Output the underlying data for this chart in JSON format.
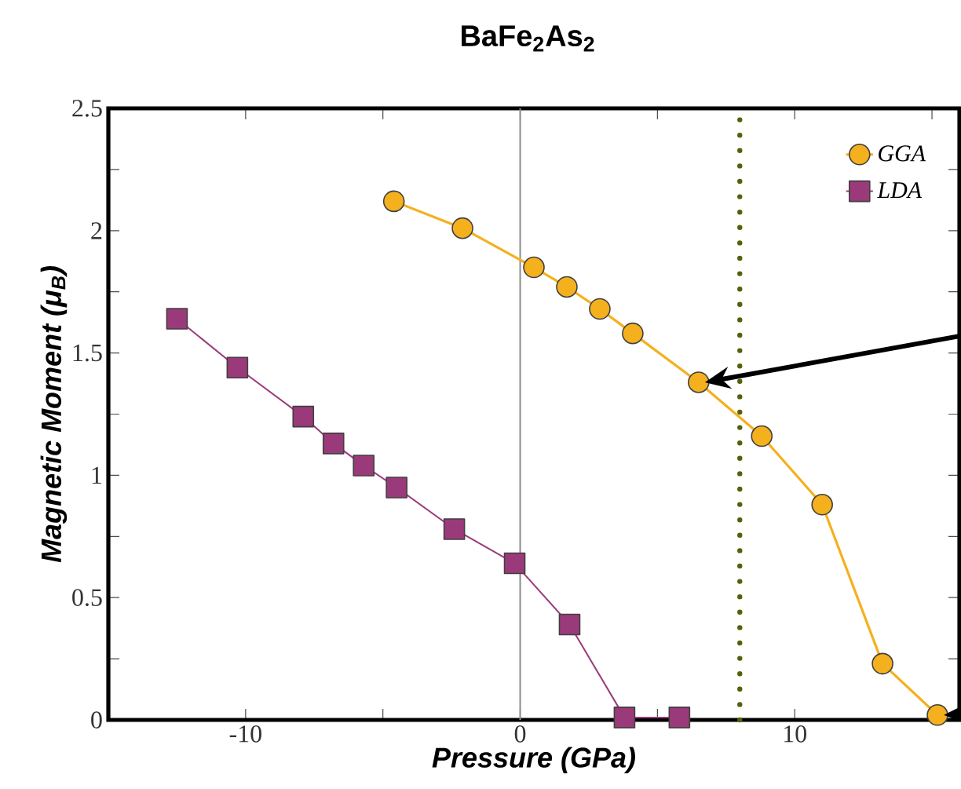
{
  "chart_data": {
    "type": "line",
    "title": "BaFe$_{2}$As$_{2}$",
    "xlabel": "Pressure (GPa)",
    "ylabel": "Magnetic Moment (μ$_{B}$)",
    "xlim": [
      -15,
      16
    ],
    "ylim": [
      0,
      2.5
    ],
    "xticks": [
      {
        "value": -15,
        "label": null
      },
      -10,
      {
        "value": -5,
        "label": null
      },
      0,
      {
        "value": 5,
        "label": null
      },
      10,
      {
        "value": 15,
        "label": null
      }
    ],
    "yticks": [
      0,
      {
        "value": 0.25,
        "label": null
      },
      0.5,
      {
        "value": 0.75,
        "label": null
      },
      1,
      {
        "value": 1.25,
        "label": null
      },
      1.5,
      {
        "value": 1.75,
        "label": null
      },
      2,
      {
        "value": 2.25,
        "label": null
      },
      2.5
    ],
    "legend": "top right",
    "grid": false,
    "series": [
      {
        "name": "GGA",
        "color": "#f5b01e",
        "marker": "circle",
        "x": [
          -4.6,
          -2.1,
          0.5,
          1.7,
          2.9,
          4.1,
          6.5,
          8.8,
          11.0,
          13.2,
          15.2
        ],
        "values": [
          2.12,
          2.01,
          1.85,
          1.77,
          1.68,
          1.58,
          1.38,
          1.16,
          0.88,
          0.23,
          0.02
        ]
      },
      {
        "name": "LDA",
        "color": "#9b3a7a",
        "marker": "square",
        "x": [
          -12.5,
          -10.3,
          -7.9,
          -6.8,
          -5.7,
          -4.5,
          -2.4,
          -0.2,
          1.8,
          3.8,
          5.8
        ],
        "values": [
          1.64,
          1.44,
          1.24,
          1.13,
          1.04,
          0.95,
          0.78,
          0.64,
          0.39,
          0.01,
          0.01
        ]
      }
    ],
    "ref_lines": [
      {
        "axis": "x",
        "value": 0,
        "color": "#8c8c8c",
        "line_style": "solid"
      },
      {
        "axis": "x",
        "value": 8,
        "color": "#56600a",
        "line_style": "dotted"
      }
    ]
  }
}
